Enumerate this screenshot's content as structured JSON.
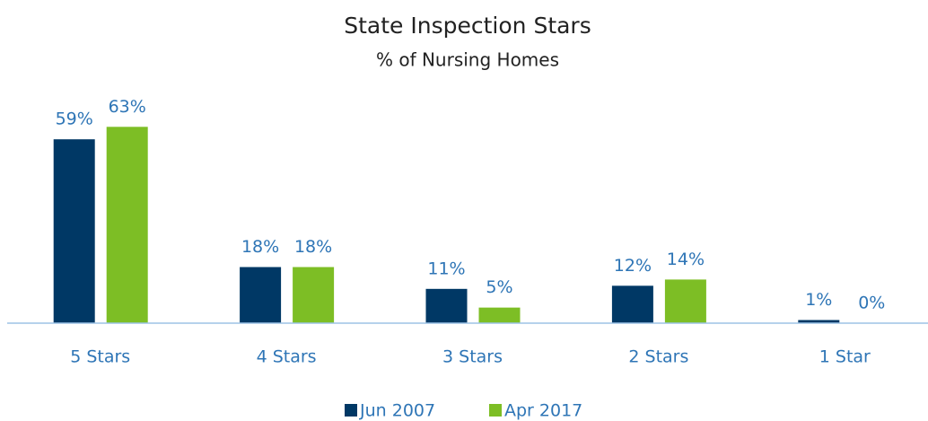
{
  "chart_data": {
    "type": "bar",
    "title": "State Inspection Stars",
    "subtitle": "% of Nursing Homes",
    "categories": [
      "5 Stars",
      "4 Stars",
      "3 Stars",
      "2 Stars",
      "1 Star"
    ],
    "series": [
      {
        "name": "Jun 2007",
        "color": "#003865",
        "values": [
          59,
          18,
          11,
          12,
          1
        ],
        "value_labels": [
          "59%",
          "18%",
          "11%",
          "12%",
          "1%"
        ]
      },
      {
        "name": "Apr 2017",
        "color": "#7dbe25",
        "values": [
          63,
          18,
          5,
          14,
          0
        ],
        "value_labels": [
          "63%",
          "18%",
          "5%",
          "14%",
          "0%"
        ]
      }
    ],
    "ylim": [
      0,
      70
    ]
  }
}
